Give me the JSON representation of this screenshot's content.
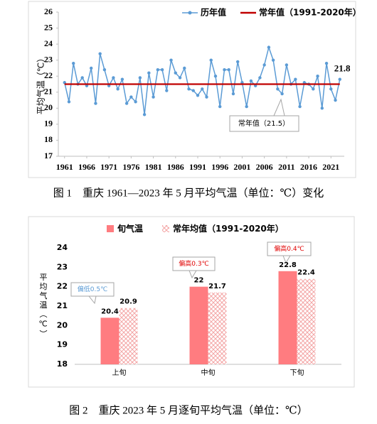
{
  "chart_data": [
    {
      "type": "line",
      "caption": "图 1　重庆 1961—2023 年 5 月平均气温（单位：℃）变化",
      "y_label": "平均气温（℃）",
      "x": [
        1961,
        1962,
        1963,
        1964,
        1965,
        1966,
        1967,
        1968,
        1969,
        1970,
        1971,
        1972,
        1973,
        1974,
        1975,
        1976,
        1977,
        1978,
        1979,
        1980,
        1981,
        1982,
        1983,
        1984,
        1985,
        1986,
        1987,
        1988,
        1989,
        1990,
        1991,
        1992,
        1993,
        1994,
        1995,
        1996,
        1997,
        1998,
        1999,
        2000,
        2001,
        2002,
        2003,
        2004,
        2005,
        2006,
        2007,
        2008,
        2009,
        2010,
        2011,
        2012,
        2013,
        2014,
        2015,
        2016,
        2017,
        2018,
        2019,
        2020,
        2021,
        2022,
        2023
      ],
      "series": [
        {
          "name": "历年值",
          "color": "#5b9bd5",
          "values": [
            21.6,
            20.4,
            22.8,
            21.5,
            21.9,
            21.4,
            22.5,
            20.3,
            23.4,
            22.4,
            21.4,
            21.9,
            21.2,
            21.8,
            20.3,
            20.7,
            20.4,
            21.9,
            19.6,
            22.2,
            20.7,
            22.4,
            22.4,
            21.1,
            23.0,
            22.2,
            21.9,
            22.5,
            21.2,
            21.1,
            20.8,
            21.2,
            20.7,
            23.0,
            22.0,
            20.1,
            22.4,
            22.4,
            20.9,
            22.9,
            21.6,
            20.1,
            21.7,
            21.4,
            21.9,
            22.7,
            23.8,
            23.0,
            21.2,
            20.9,
            22.7,
            21.5,
            21.8,
            20.1,
            21.6,
            21.5,
            21.2,
            22.0,
            20.0,
            22.8,
            21.2,
            20.5,
            21.8
          ]
        },
        {
          "name": "常年值（1991-2020年）",
          "color": "#c00000",
          "x": [
            1961,
            2023
          ],
          "values": [
            21.5,
            21.5
          ]
        }
      ],
      "annotation": "常年值（21.5）",
      "xlim": [
        1959.6,
        2024
      ],
      "xticks": [
        1961,
        1966,
        1971,
        1976,
        1981,
        1986,
        1991,
        1996,
        2001,
        2006,
        2011,
        2016,
        2021
      ],
      "ylim": [
        17,
        26
      ],
      "yticks": [
        17,
        18,
        19,
        20,
        21,
        22,
        23,
        24,
        25,
        26
      ],
      "legend": "top-right"
    },
    {
      "type": "bar",
      "caption": "图 2　重庆 2023 年 5 月逐旬平均气温（单位：℃）",
      "y_label": "平均气温（℃）",
      "categories": [
        "上旬",
        "中旬",
        "下旬"
      ],
      "series": [
        {
          "name": "旬气温",
          "color": "#ff7c80",
          "fill_style": "solid",
          "values": [
            20.4,
            22,
            22.8
          ]
        },
        {
          "name": "常年均值（1991-2020年）",
          "color": "#f4a6a6",
          "fill_style": "hatch",
          "values": [
            20.9,
            21.7,
            22.4
          ]
        }
      ],
      "annotations": [
        "偏低0.5℃",
        "偏高0.3℃",
        "偏高0.4℃"
      ],
      "ylim": [
        18,
        24
      ],
      "yticks": [
        18,
        19,
        20,
        21,
        22,
        23,
        24
      ],
      "legend": "top"
    }
  ]
}
